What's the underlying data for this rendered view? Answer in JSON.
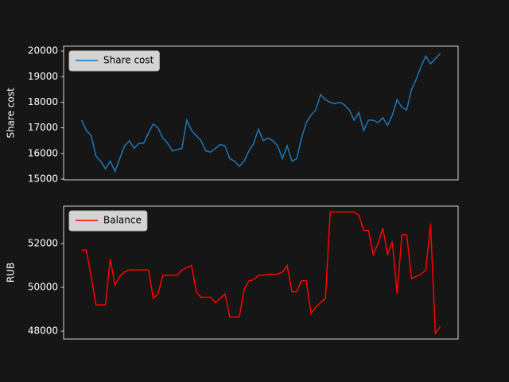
{
  "chart_data": [
    {
      "type": "line",
      "ylabel": "Share cost",
      "legend": "upper left",
      "ylim": [
        14970,
        20190
      ],
      "yticks": [
        15000,
        16000,
        17000,
        18000,
        19000,
        20000
      ],
      "series": [
        {
          "name": "Share cost",
          "color": "#1f77b4",
          "values": [
            17300,
            16900,
            16700,
            15900,
            15700,
            15400,
            15700,
            15300,
            15800,
            16300,
            16500,
            16200,
            16400,
            16400,
            16800,
            17150,
            17000,
            16600,
            16400,
            16100,
            16150,
            16200,
            17300,
            16900,
            16700,
            16500,
            16100,
            16050,
            16200,
            16350,
            16300,
            15800,
            15700,
            15500,
            15700,
            16100,
            16400,
            16950,
            16500,
            16600,
            16500,
            16300,
            15800,
            16300,
            15700,
            15800,
            16600,
            17200,
            17500,
            17700,
            18300,
            18100,
            18000,
            17950,
            18000,
            17900,
            17700,
            17300,
            17600,
            16900,
            17300,
            17300,
            17200,
            17400,
            17100,
            17500,
            18100,
            17800,
            17700,
            18500,
            18900,
            19400,
            19800,
            19500,
            19700,
            19900
          ]
        }
      ]
    },
    {
      "type": "line",
      "ylabel": "RUB",
      "legend": "upper left",
      "ylim": [
        47640,
        53710
      ],
      "yticks": [
        48000,
        50000,
        52000
      ],
      "series": [
        {
          "name": "Balance",
          "color": "#ff0000",
          "values": [
            51700,
            51700,
            50500,
            49200,
            49200,
            49200,
            51300,
            50100,
            50500,
            50700,
            50800,
            50800,
            50800,
            50800,
            50800,
            49500,
            49700,
            50550,
            50550,
            50550,
            50550,
            50800,
            50900,
            51000,
            49800,
            49550,
            49550,
            49550,
            49300,
            49500,
            49700,
            48650,
            48650,
            48650,
            49900,
            50300,
            50350,
            50550,
            50550,
            50600,
            50600,
            50600,
            50700,
            51000,
            49800,
            49800,
            50300,
            50300,
            48800,
            49100,
            49300,
            49500,
            53450,
            53450,
            53450,
            53450,
            53450,
            53450,
            53300,
            52600,
            52600,
            51500,
            52000,
            52700,
            51500,
            52100,
            49700,
            52400,
            52400,
            50400,
            50500,
            50600,
            50800,
            52900,
            47900,
            48200
          ]
        }
      ]
    }
  ]
}
